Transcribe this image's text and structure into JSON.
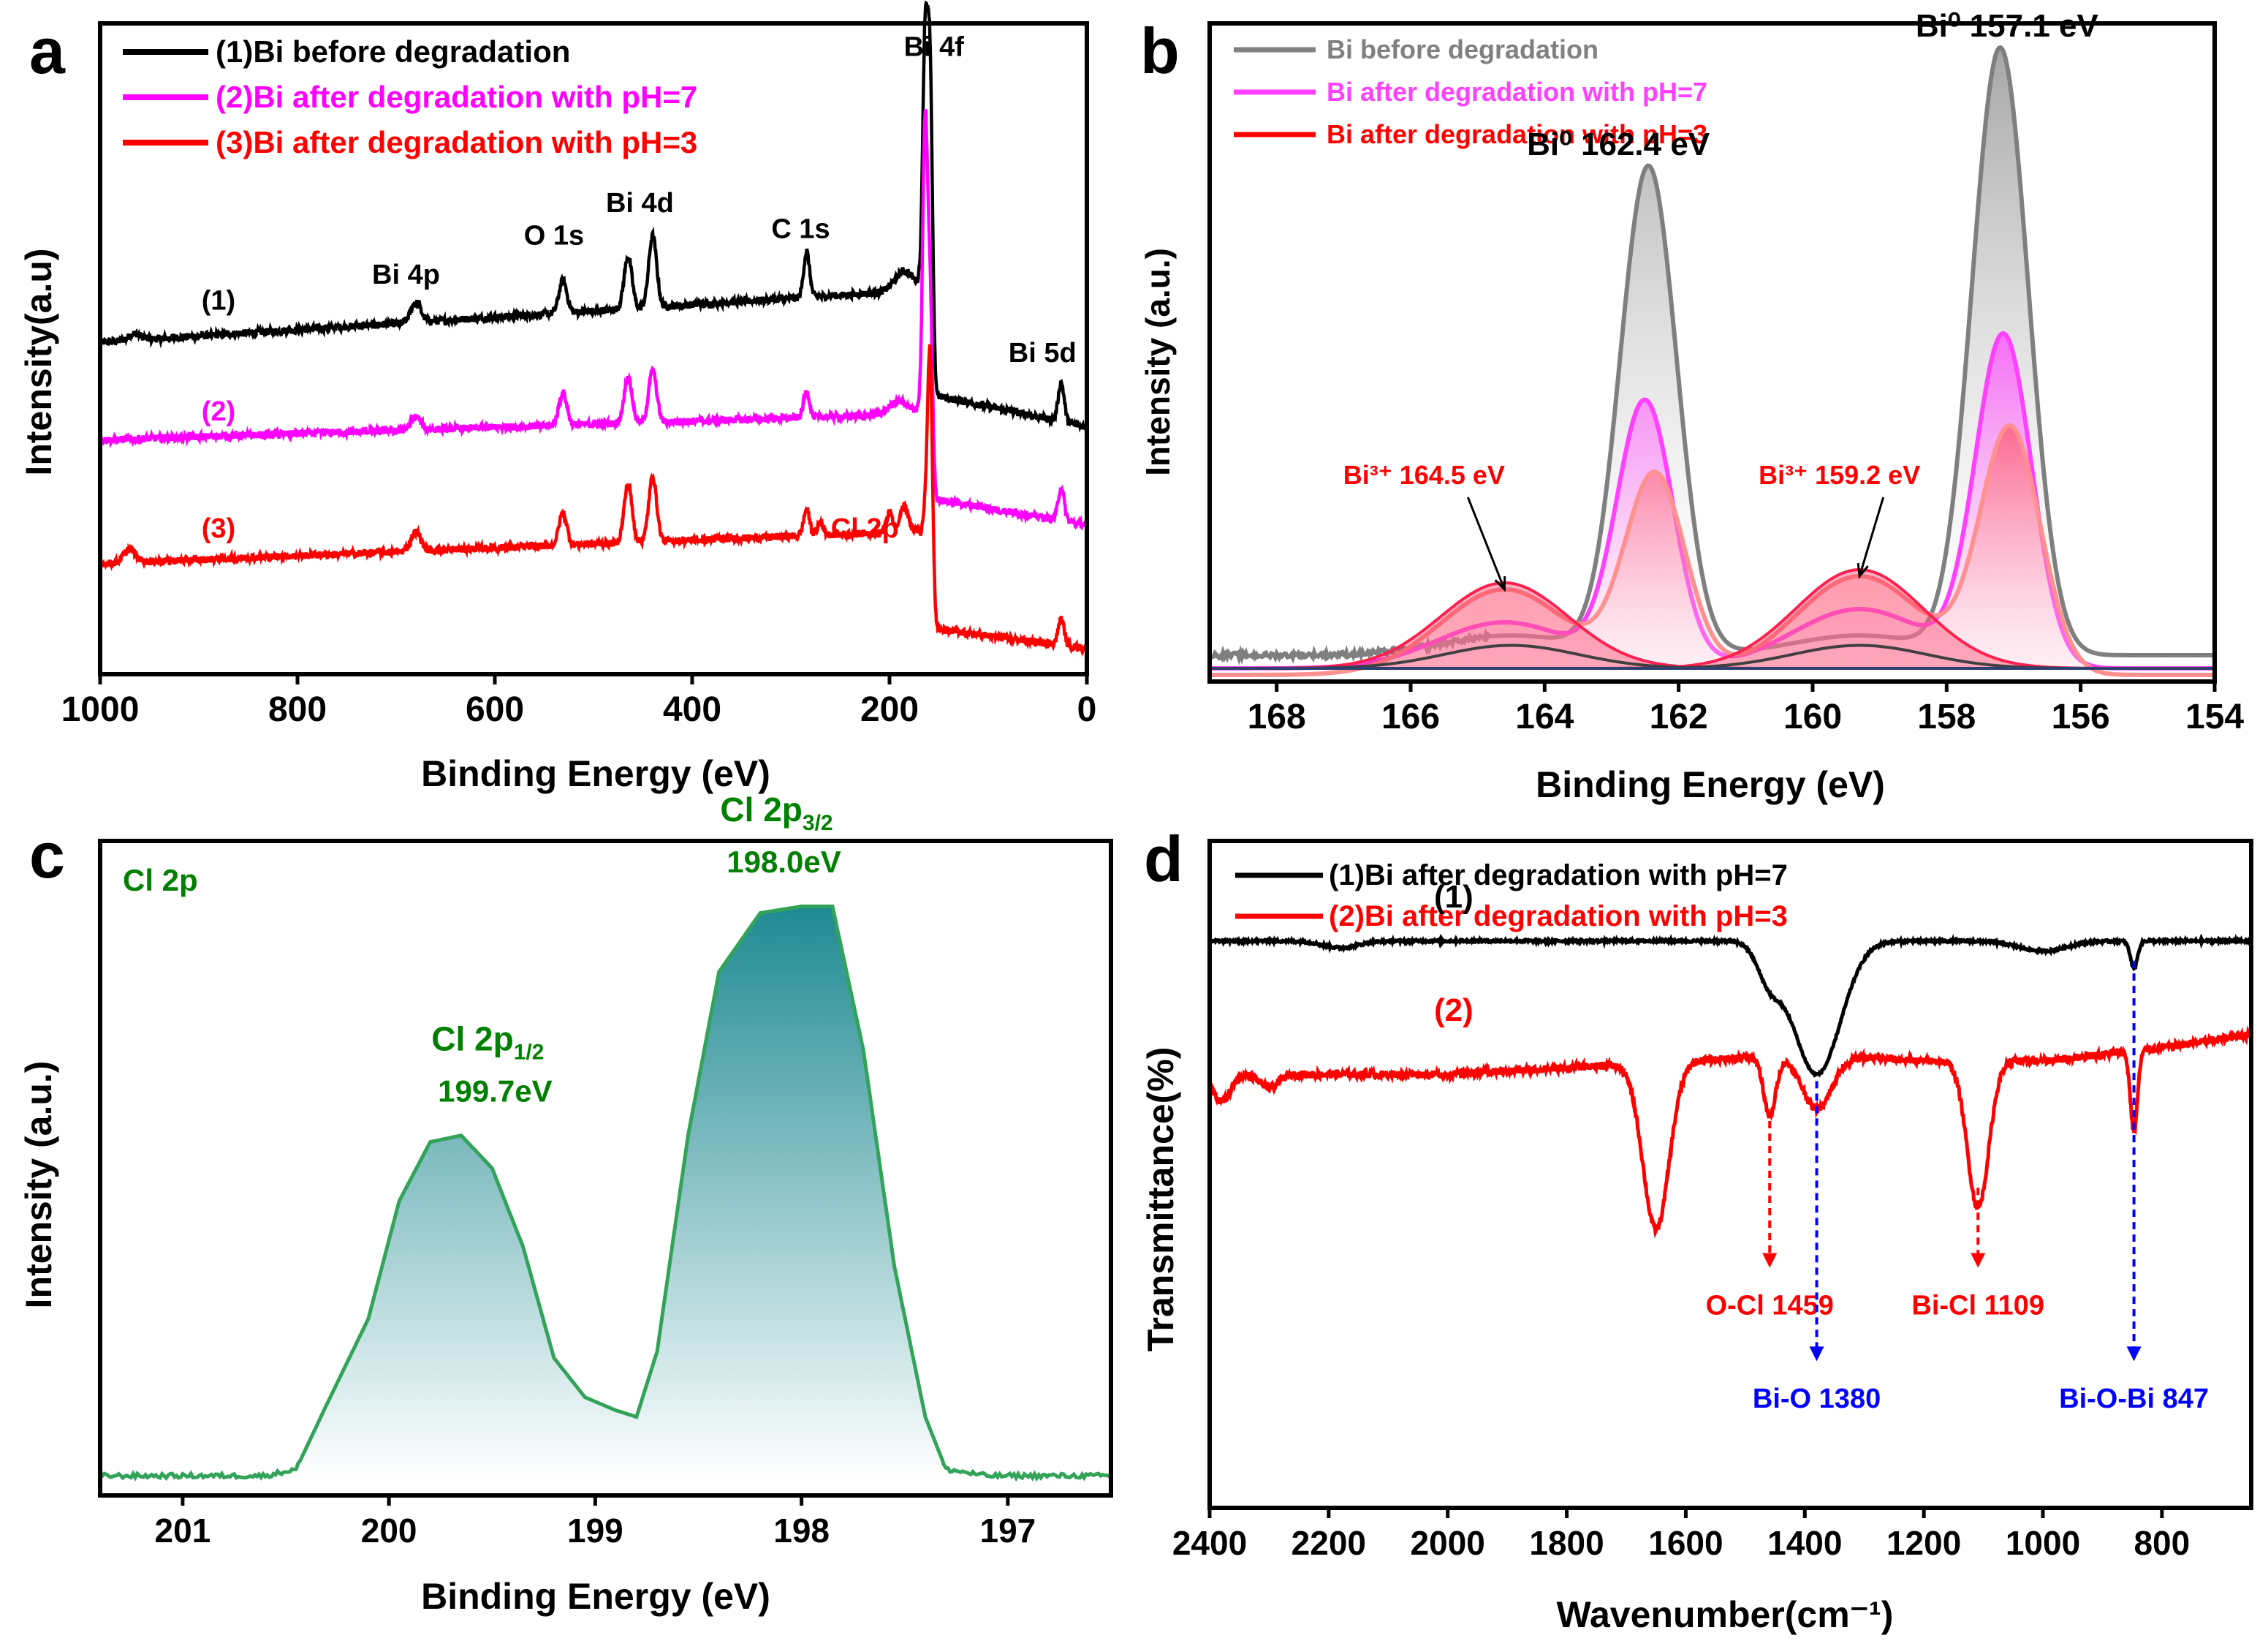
{
  "figure": {
    "panel_letters": [
      "a",
      "b",
      "c",
      "d"
    ]
  },
  "chart_data": [
    {
      "panel": "a",
      "type": "line",
      "title": "",
      "xlabel": "Binding Energy (eV)",
      "ylabel": "Intensity(a.u)",
      "xlim": [
        1000,
        0
      ],
      "ylim": [
        0,
        100
      ],
      "x_reversed": true,
      "xticks": [
        1000,
        800,
        600,
        400,
        200,
        0
      ],
      "legend": {
        "placement": "top-left",
        "entries": [
          {
            "label": "(1)Bi before degradation",
            "color": "#000000"
          },
          {
            "label": "(2)Bi after degradation with pH=7",
            "color": "#ff00ff"
          },
          {
            "label": "(3)Bi after degradation with pH=3",
            "color": "#ff0000"
          }
        ]
      },
      "series": [
        {
          "name": "(1)",
          "color": "#000000",
          "baseline": [
            [
              1000,
              51
            ],
            [
              170,
              59
            ],
            [
              160,
              43
            ],
            [
              0,
              38
            ]
          ],
          "peaks": [
            [
              965,
              1,
              6
            ],
            [
              680,
              3,
              5
            ],
            [
              531,
              5,
              4
            ],
            [
              465,
              8,
              4
            ],
            [
              440,
              11,
              4
            ],
            [
              284,
              7,
              3
            ],
            [
              185,
              3,
              10
            ],
            [
              164,
              45,
              2.5
            ],
            [
              159,
              49,
              2.5
            ],
            [
              26,
              6,
              3
            ]
          ]
        },
        {
          "name": "(2)",
          "color": "#ff00ff",
          "baseline": [
            [
              1000,
              36
            ],
            [
              170,
              40
            ],
            [
              160,
              27
            ],
            [
              0,
              23
            ]
          ],
          "peaks": [
            [
              680,
              2,
              5
            ],
            [
              531,
              5,
              4
            ],
            [
              465,
              7,
              4
            ],
            [
              440,
              8,
              4
            ],
            [
              284,
              4,
              3
            ],
            [
              190,
              2,
              10
            ],
            [
              164,
              50,
              2.5
            ],
            [
              159,
              30,
              2.5
            ],
            [
              26,
              5,
              3
            ]
          ]
        },
        {
          "name": "(3)",
          "color": "#ff0000",
          "baseline": [
            [
              1000,
              17
            ],
            [
              170,
              22
            ],
            [
              160,
              7
            ],
            [
              0,
              4
            ]
          ],
          "peaks": [
            [
              970,
              2,
              6
            ],
            [
              680,
              3,
              5
            ],
            [
              531,
              5,
              4
            ],
            [
              465,
              9,
              4
            ],
            [
              440,
              10,
              4
            ],
            [
              284,
              4,
              3
            ],
            [
              270,
              2,
              3
            ],
            [
              200,
              3,
              3
            ],
            [
              185,
              4,
              4
            ],
            [
              164,
              10,
              2.5
            ],
            [
              159,
              42,
              2.5
            ],
            [
              26,
              4,
              3
            ]
          ]
        }
      ],
      "annotations": [
        {
          "text": "Bi 4f",
          "x": 155,
          "y": 95,
          "color": "#000000"
        },
        {
          "text": "O 1s",
          "x": 540,
          "y": 66,
          "color": "#000000"
        },
        {
          "text": "Bi 4d",
          "x": 453,
          "y": 71,
          "color": "#000000"
        },
        {
          "text": "C 1s",
          "x": 290,
          "y": 67,
          "color": "#000000"
        },
        {
          "text": "Bi 4p",
          "x": 690,
          "y": 60,
          "color": "#000000"
        },
        {
          "text": "Bi 5d",
          "x": 45,
          "y": 48,
          "color": "#000000"
        },
        {
          "text": "(1)",
          "x": 880,
          "y": 56,
          "color": "#000000"
        },
        {
          "text": "(2)",
          "x": 880,
          "y": 39,
          "color": "#ff00ff"
        },
        {
          "text": "(3)",
          "x": 880,
          "y": 21,
          "color": "#ff0000"
        },
        {
          "text": "Cl 2p",
          "x": 225,
          "y": 21,
          "color": "#ff0000"
        }
      ]
    },
    {
      "panel": "b",
      "type": "area",
      "title": "",
      "xlabel": "Binding Energy (eV)",
      "ylabel": "Intensity (a.u.)",
      "xlim": [
        169,
        154
      ],
      "ylim": [
        0,
        100
      ],
      "x_reversed": true,
      "xticks": [
        168,
        166,
        164,
        162,
        160,
        158,
        156,
        154
      ],
      "legend": {
        "placement": "top-left",
        "entries": [
          {
            "label": "Bi before degradation",
            "color": "#808080"
          },
          {
            "label": "Bi after degradation with pH=7",
            "color": "#ff40ff"
          },
          {
            "label": "Bi after degradation with pH=3",
            "color": "#ff0000"
          }
        ]
      },
      "series": [
        {
          "name": "Bi before degradation",
          "color": "#7f7f7f",
          "fill": "#9a9a9a",
          "baseline": 4,
          "peaks": [
            [
              162.45,
              74,
              0.42
            ],
            [
              157.2,
              92,
              0.42
            ],
            [
              164.5,
              3,
              1.0
            ],
            [
              159.3,
              3,
              1.0
            ]
          ]
        },
        {
          "name": "Bi after degradation with pH=7",
          "color": "#ff40ff",
          "fill": "#ff70ff",
          "baseline": 2,
          "peaks": [
            [
              162.5,
              40,
              0.42
            ],
            [
              157.15,
              50,
              0.42
            ],
            [
              164.6,
              7,
              1.0
            ],
            [
              159.3,
              9,
              1.0
            ]
          ]
        },
        {
          "name": "Bi after degradation with pH=3",
          "color": "#ff9090",
          "fill": "#ff8080",
          "baseline": 1,
          "peaks": [
            [
              162.35,
              30,
              0.45
            ],
            [
              157.05,
              37,
              0.45
            ],
            [
              164.6,
              13,
              0.95
            ],
            [
              159.3,
              15,
              0.95
            ]
          ]
        }
      ],
      "components": [
        {
          "center": 164.6,
          "height": 13,
          "width": 0.95,
          "color": "#ff2050"
        },
        {
          "center": 159.3,
          "height": 15,
          "width": 0.95,
          "color": "#ff2050"
        },
        {
          "center": 164.5,
          "height": 3.5,
          "width": 1.0,
          "color": "#404040"
        },
        {
          "center": 159.3,
          "height": 3.5,
          "width": 1.0,
          "color": "#404040"
        }
      ],
      "annotations": [
        {
          "text": "Bi⁰ 162.4 eV",
          "x": 162.9,
          "y": 80,
          "color": "#000000"
        },
        {
          "text": "Bi⁰ 157.1 eV",
          "x": 157.1,
          "y": 98,
          "color": "#000000"
        },
        {
          "text": "Bi³⁺ 164.5 eV",
          "x": 165.8,
          "y": 30,
          "color": "#ff0000",
          "arrow_to": [
            164.6,
            14
          ]
        },
        {
          "text": "Bi³⁺ 159.2 eV",
          "x": 159.6,
          "y": 30,
          "color": "#ff0000",
          "arrow_to": [
            159.3,
            16
          ]
        }
      ]
    },
    {
      "panel": "c",
      "type": "area",
      "title": "Cl 2p",
      "xlabel": "Binding Energy (eV)",
      "ylabel": "Intensity (a.u.)",
      "xlim": [
        201.4,
        196.5
      ],
      "ylim": [
        0,
        100
      ],
      "x_reversed": true,
      "xticks": [
        201,
        200,
        199,
        198,
        197
      ],
      "series": [
        {
          "name": "Cl 2p",
          "color": "#33a35a",
          "fill_top": "#2a8f96",
          "fill_bottom": "#ffffff",
          "baseline": 3,
          "points": [
            [
              201.4,
              3
            ],
            [
              200.8,
              3
            ],
            [
              200.6,
              3
            ],
            [
              200.45,
              4
            ],
            [
              200.3,
              14
            ],
            [
              200.1,
              27
            ],
            [
              199.95,
              45
            ],
            [
              199.8,
              54
            ],
            [
              199.65,
              55
            ],
            [
              199.5,
              50
            ],
            [
              199.35,
              38
            ],
            [
              199.2,
              21
            ],
            [
              199.05,
              15
            ],
            [
              198.9,
              13
            ],
            [
              198.8,
              12
            ],
            [
              198.7,
              22
            ],
            [
              198.55,
              55
            ],
            [
              198.4,
              80
            ],
            [
              198.2,
              89
            ],
            [
              198.0,
              90
            ],
            [
              197.85,
              90
            ],
            [
              197.7,
              68
            ],
            [
              197.55,
              35
            ],
            [
              197.4,
              12
            ],
            [
              197.3,
              4
            ],
            [
              197.1,
              3
            ],
            [
              196.5,
              3
            ]
          ]
        }
      ],
      "annotations": [
        {
          "text": "Cl 2p",
          "sub": "1/2",
          "value": "199.7eV",
          "x": 199.45,
          "y": 68,
          "color": "#008000"
        },
        {
          "text": "Cl 2p",
          "sub": "3/2",
          "value": "198.0eV",
          "x": 198.05,
          "y": 103,
          "color": "#008000"
        }
      ]
    },
    {
      "panel": "d",
      "type": "line",
      "title": "",
      "xlabel": "Wavenumber(cm⁻¹)",
      "ylabel": "Transmittance(%)",
      "xlim": [
        2400,
        650
      ],
      "ylim": [
        0,
        100
      ],
      "x_reversed": true,
      "xticks": [
        2400,
        2200,
        2000,
        1800,
        1600,
        1400,
        1200,
        1000,
        800
      ],
      "legend": {
        "placement": "top-left",
        "entries": [
          {
            "label": "(1)Bi after degradation with pH=7",
            "color": "#000000"
          },
          {
            "label": "(2)Bi after degradation with pH=3",
            "color": "#ff0000"
          }
        ]
      },
      "series": [
        {
          "name": "(1)",
          "color": "#000000",
          "baseline": 85,
          "dips": [
            [
              1380,
              20,
              40
            ],
            [
              1460,
              5,
              20
            ],
            [
              2180,
              1,
              30
            ],
            [
              1000,
              1.5,
              40
            ],
            [
              847,
              4,
              6
            ]
          ]
        },
        {
          "name": "(2)",
          "color": "#ff0000",
          "baseline": [
            [
              2400,
              65
            ],
            [
              2000,
              65
            ],
            [
              1800,
              66
            ],
            [
              1600,
              67
            ],
            [
              1400,
              68
            ],
            [
              1200,
              67
            ],
            [
              1000,
              67
            ],
            [
              800,
              69
            ],
            [
              650,
              71
            ]
          ],
          "dips": [
            [
              1650,
              25,
              22
            ],
            [
              1459,
              9,
              10
            ],
            [
              1380,
              8,
              25
            ],
            [
              1109,
              22,
              18
            ],
            [
              847,
              12,
              6
            ],
            [
              2380,
              4,
              15
            ],
            [
              2300,
              2,
              15
            ]
          ]
        }
      ],
      "annotations": [
        {
          "text": "(1)",
          "x": 1990,
          "y": 90,
          "color": "#000000"
        },
        {
          "text": "(2)",
          "x": 1990,
          "y": 73,
          "color": "#ff0000"
        },
        {
          "text": "O-Cl 1459",
          "x": 1459,
          "y": 29,
          "color": "#ff0000",
          "arrow_from": 58,
          "arrow_to": 36
        },
        {
          "text": "Bi-Cl 1109",
          "x": 1109,
          "y": 29,
          "color": "#ff0000",
          "arrow_from": 48,
          "arrow_to": 36
        },
        {
          "text": "Bi-O 1380",
          "x": 1380,
          "y": 15,
          "color": "#0000ff",
          "arrow_from": 64,
          "arrow_to": 22
        },
        {
          "text": "Bi-O-Bi 847",
          "x": 847,
          "y": 15,
          "color": "#0000ff",
          "arrow_from": 82,
          "arrow_to": 22
        }
      ]
    }
  ]
}
